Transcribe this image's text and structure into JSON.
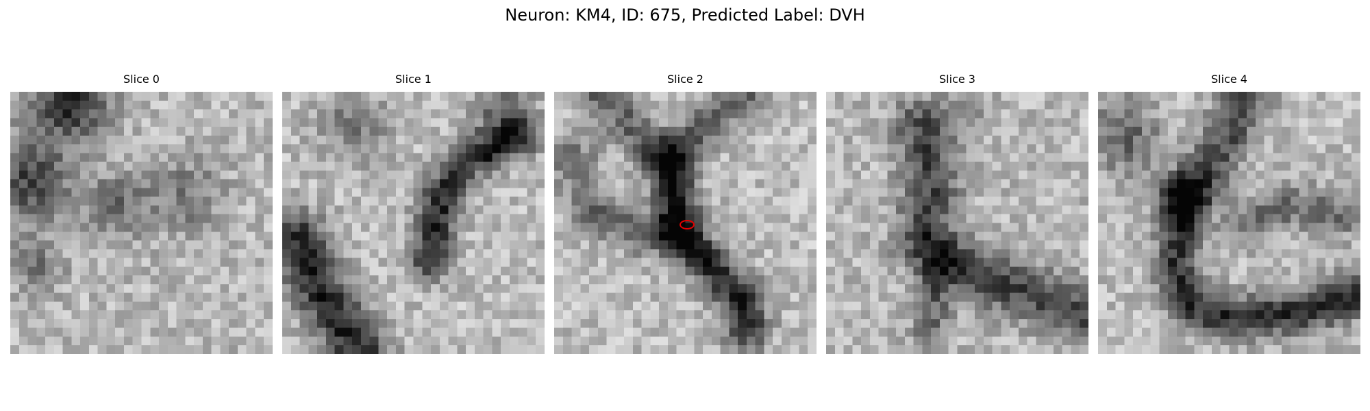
{
  "figure": {
    "title": "Neuron: KM4, ID: 675, Predicted Label: DVH"
  },
  "panels": [
    {
      "title": "Slice 0"
    },
    {
      "title": "Slice 1"
    },
    {
      "title": "Slice 2"
    },
    {
      "title": "Slice 3"
    },
    {
      "title": "Slice 4"
    }
  ],
  "image": {
    "grid_size": 30,
    "colormap": "grayscale",
    "marker_color": "#e60000",
    "marker_panel": 2
  }
}
